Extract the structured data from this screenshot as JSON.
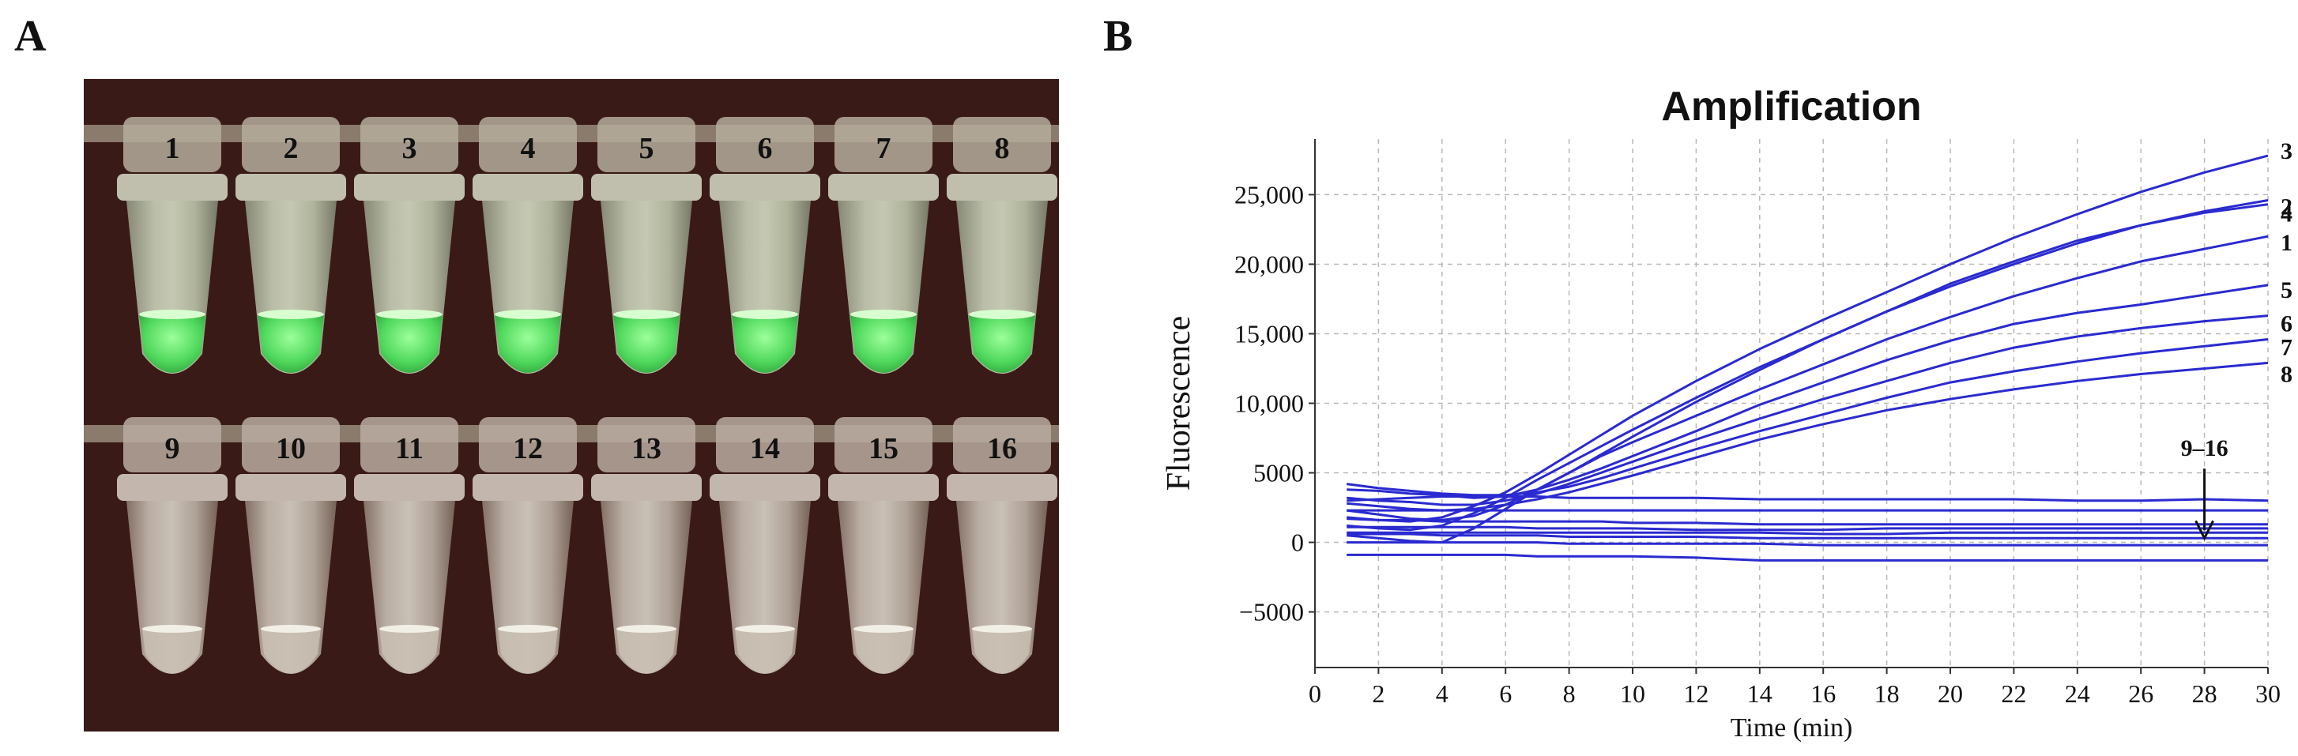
{
  "panels": {
    "a_label": "A",
    "b_label": "B"
  },
  "photo": {
    "tubes_top": [
      "1",
      "2",
      "3",
      "4",
      "5",
      "6",
      "7",
      "8"
    ],
    "tubes_bottom": [
      "9",
      "10",
      "11",
      "12",
      "13",
      "14",
      "15",
      "16"
    ],
    "tube_fluorescence_top": [
      1,
      1,
      1,
      1,
      1,
      1,
      1,
      1
    ],
    "tube_fluorescence_bottom": [
      0,
      0,
      0,
      0,
      0,
      0,
      0,
      0
    ]
  },
  "colors": {
    "line": "#2a2ad0",
    "grid": "#b8b8b8",
    "photo_bg": "#3a1a16",
    "glow": "#59e060"
  },
  "chart_data": {
    "type": "line",
    "title": "Amplification",
    "xlabel": "Time (min)",
    "ylabel": "Fluorescence",
    "xlim": [
      0,
      30
    ],
    "ylim": [
      -9000,
      29000
    ],
    "x_ticks": [
      0,
      2,
      4,
      6,
      8,
      10,
      12,
      14,
      16,
      18,
      20,
      22,
      24,
      26,
      28,
      30
    ],
    "y_ticks": [
      -5000,
      0,
      5000,
      10000,
      15000,
      20000,
      25000
    ],
    "y_tick_labels": [
      "−5000",
      "0",
      "5000",
      "10,000",
      "15,000",
      "20,000",
      "25,000"
    ],
    "grid": true,
    "x": [
      1,
      2,
      3,
      4,
      5,
      6,
      7,
      8,
      9,
      10,
      12,
      14,
      16,
      18,
      20,
      22,
      24,
      26,
      28,
      30
    ],
    "series": [
      {
        "name": "1",
        "values": [
          500,
          300,
          100,
          0,
          1000,
          2400,
          3800,
          5000,
          6200,
          7200,
          9100,
          11000,
          12800,
          14600,
          16200,
          17700,
          19000,
          20200,
          21100,
          22000
        ]
      },
      {
        "name": "2",
        "values": [
          1200,
          1000,
          900,
          1200,
          2100,
          3200,
          4500,
          5700,
          6900,
          8100,
          10400,
          12600,
          14600,
          16600,
          18400,
          20000,
          21500,
          22800,
          23800,
          24600
        ]
      },
      {
        "name": "3",
        "values": [
          1800,
          1600,
          1500,
          1800,
          2600,
          3600,
          4900,
          6300,
          7700,
          9100,
          11600,
          13900,
          16000,
          18000,
          20000,
          21900,
          23600,
          25200,
          26600,
          27800
        ]
      },
      {
        "name": "4",
        "values": [
          2300,
          2000,
          1700,
          1600,
          1900,
          2700,
          3800,
          5000,
          6300,
          7600,
          10100,
          12400,
          14600,
          16600,
          18600,
          20200,
          21700,
          22800,
          23700,
          24300
        ]
      },
      {
        "name": "5",
        "values": [
          3800,
          3700,
          3500,
          3400,
          3200,
          3300,
          3800,
          4500,
          5300,
          6200,
          8000,
          9900,
          11500,
          13100,
          14500,
          15700,
          16500,
          17100,
          17800,
          18500
        ]
      },
      {
        "name": "6",
        "values": [
          3200,
          3000,
          2900,
          2700,
          2700,
          3000,
          3500,
          4200,
          5000,
          5800,
          7400,
          8900,
          10300,
          11600,
          12900,
          14000,
          14800,
          15400,
          15900,
          16300
        ]
      },
      {
        "name": "7",
        "values": [
          4200,
          3900,
          3700,
          3500,
          3400,
          3400,
          3600,
          4000,
          4600,
          5300,
          6700,
          8000,
          9200,
          10400,
          11500,
          12300,
          13000,
          13600,
          14100,
          14600
        ]
      },
      {
        "name": "8",
        "values": [
          2800,
          2600,
          2400,
          2300,
          2400,
          2700,
          3100,
          3600,
          4200,
          4800,
          6100,
          7400,
          8500,
          9500,
          10300,
          11000,
          11600,
          12100,
          12500,
          12900
        ]
      },
      {
        "name": "9",
        "values": [
          3000,
          3100,
          3200,
          3300,
          3300,
          3300,
          3300,
          3200,
          3200,
          3200,
          3200,
          3100,
          3100,
          3100,
          3100,
          3100,
          3000,
          3000,
          3100,
          3000
        ]
      },
      {
        "name": "10",
        "values": [
          2300,
          2300,
          2300,
          2300,
          2300,
          2300,
          2300,
          2300,
          2300,
          2300,
          2300,
          2300,
          2300,
          2300,
          2300,
          2300,
          2300,
          2300,
          2300,
          2300
        ]
      },
      {
        "name": "11",
        "values": [
          1700,
          1600,
          1600,
          1500,
          1500,
          1500,
          1500,
          1500,
          1500,
          1400,
          1400,
          1300,
          1300,
          1300,
          1300,
          1300,
          1300,
          1300,
          1300,
          1300
        ]
      },
      {
        "name": "12",
        "values": [
          1100,
          1100,
          1100,
          1100,
          1100,
          1100,
          1000,
          1000,
          1000,
          1000,
          900,
          900,
          900,
          1000,
          1000,
          1000,
          1000,
          1000,
          1000,
          1000
        ]
      },
      {
        "name": "13",
        "values": [
          700,
          700,
          700,
          700,
          700,
          700,
          700,
          700,
          700,
          700,
          700,
          700,
          600,
          600,
          700,
          700,
          700,
          700,
          700,
          700
        ]
      },
      {
        "name": "14",
        "values": [
          600,
          600,
          600,
          500,
          500,
          500,
          500,
          400,
          400,
          400,
          400,
          300,
          300,
          300,
          300,
          300,
          300,
          300,
          300,
          300
        ]
      },
      {
        "name": "15",
        "values": [
          0,
          0,
          0,
          0,
          0,
          0,
          0,
          -100,
          -100,
          -100,
          -100,
          -100,
          -200,
          -200,
          -200,
          -200,
          -200,
          -200,
          -200,
          -200
        ]
      },
      {
        "name": "16",
        "values": [
          -900,
          -900,
          -900,
          -900,
          -900,
          -900,
          -1000,
          -1000,
          -1000,
          -1000,
          -1100,
          -1300,
          -1300,
          -1300,
          -1300,
          -1300,
          -1300,
          -1300,
          -1300,
          -1300
        ]
      }
    ],
    "annotations": [
      {
        "text": "3",
        "series": "3"
      },
      {
        "text": "2",
        "series": "2"
      },
      {
        "text": "4",
        "series": "4"
      },
      {
        "text": "1",
        "series": "1"
      },
      {
        "text": "5",
        "series": "5"
      },
      {
        "text": "6",
        "series": "6"
      },
      {
        "text": "7",
        "series": "7"
      },
      {
        "text": "8",
        "series": "8"
      },
      {
        "text": "9–16",
        "arrow_x": 28,
        "arrow_from": 5300,
        "arrow_to": 300
      }
    ]
  }
}
